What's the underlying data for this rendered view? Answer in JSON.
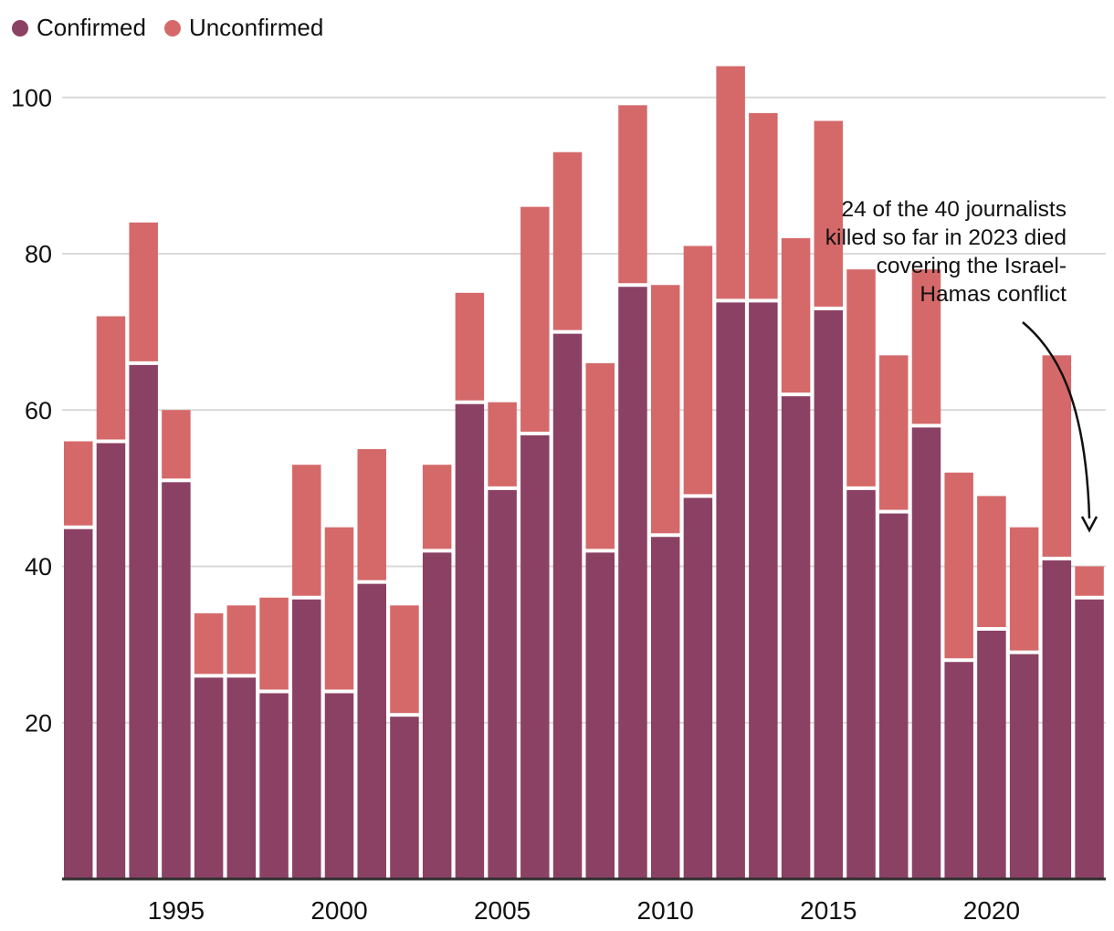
{
  "legend": {
    "items": [
      {
        "label": "Confirmed",
        "color_key": "confirmed"
      },
      {
        "label": "Unconfirmed",
        "color_key": "unconfirmed"
      }
    ]
  },
  "annotation": {
    "lines": [
      "24 of the 40 journalists",
      "killed so far in 2023 died",
      "covering the Israel-",
      "Hamas conflict"
    ]
  },
  "colors": {
    "confirmed": "#8b4164",
    "unconfirmed": "#d5696a",
    "gridline": "#d9d9d9",
    "axis_line": "#2f2f2f",
    "text": "#111111"
  },
  "chart_data": {
    "type": "bar",
    "stacked": true,
    "title": "",
    "xlabel": "",
    "ylabel": "",
    "x": [
      1992,
      1993,
      1994,
      1995,
      1996,
      1997,
      1998,
      1999,
      2000,
      2001,
      2002,
      2003,
      2004,
      2005,
      2006,
      2007,
      2008,
      2009,
      2010,
      2011,
      2012,
      2013,
      2014,
      2015,
      2016,
      2017,
      2018,
      2019,
      2020,
      2021,
      2022,
      2023
    ],
    "series": [
      {
        "name": "Confirmed",
        "values": [
          45,
          56,
          66,
          51,
          26,
          26,
          24,
          36,
          24,
          38,
          21,
          42,
          61,
          50,
          57,
          70,
          42,
          76,
          44,
          49,
          74,
          74,
          62,
          73,
          50,
          47,
          58,
          28,
          32,
          29,
          41,
          36
        ]
      },
      {
        "name": "Unconfirmed",
        "values": [
          11,
          16,
          18,
          9,
          8,
          9,
          12,
          17,
          21,
          17,
          14,
          11,
          14,
          11,
          29,
          23,
          24,
          23,
          32,
          32,
          30,
          24,
          20,
          24,
          28,
          20,
          20,
          24,
          17,
          16,
          26,
          4
        ]
      }
    ],
    "totals": [
      56,
      72,
      84,
      60,
      34,
      35,
      36,
      53,
      45,
      55,
      35,
      53,
      75,
      61,
      86,
      93,
      66,
      99,
      76,
      81,
      104,
      98,
      82,
      97,
      78,
      67,
      78,
      52,
      49,
      45,
      67,
      40
    ],
    "y_ticks": [
      20,
      40,
      60,
      80,
      100
    ],
    "x_ticks": [
      1995,
      2000,
      2005,
      2010,
      2015,
      2020
    ],
    "ylim": [
      0,
      104
    ],
    "grid": "horizontal",
    "legend_position": "top-left"
  }
}
